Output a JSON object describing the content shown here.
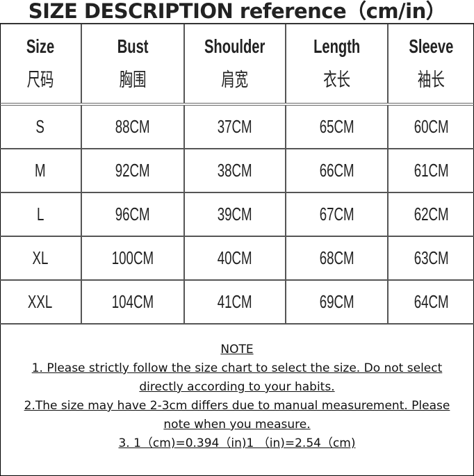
{
  "title": "SIZE DESCRIPTION reference（cm/in）",
  "table": {
    "headers": [
      {
        "en": "Size",
        "cn": "尺码"
      },
      {
        "en": "Bust",
        "cn": "胸围"
      },
      {
        "en": "Shoulder",
        "cn": "肩宽"
      },
      {
        "en": "Length",
        "cn": "衣长"
      },
      {
        "en": "Sleeve",
        "cn": "袖长"
      }
    ],
    "rows": [
      [
        "S",
        "88CM",
        "37CM",
        "65CM",
        "60CM"
      ],
      [
        "M",
        "92CM",
        "38CM",
        "66CM",
        "61CM"
      ],
      [
        "L",
        "96CM",
        "39CM",
        "67CM",
        "62CM"
      ],
      [
        "XL",
        "100CM",
        "40CM",
        "68CM",
        "63CM"
      ],
      [
        "XXL",
        "104CM",
        "41CM",
        "69CM",
        "64CM"
      ]
    ]
  },
  "notes": {
    "heading": "NOTE",
    "lines": [
      "1. Please strictly follow the size chart to select the size. Do not select",
      "directly according to your habits.",
      "2.The size may have 2-3cm differs due to manual measurement. Please",
      "note when you measure.",
      "3.  1（cm)=0.394（in)1  （in)=2.54（cm)"
    ]
  }
}
